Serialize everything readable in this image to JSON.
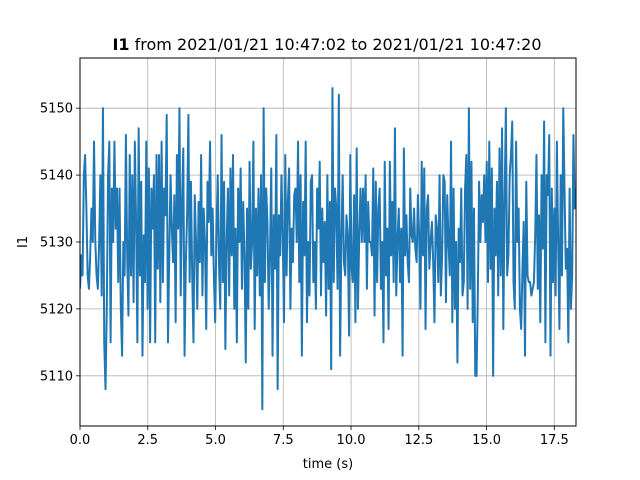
{
  "title": {
    "bold": "I1",
    "rest": " from 2021/01/21 10:47:02 to 2021/01/21 10:47:20"
  },
  "chart_data": {
    "type": "line",
    "title": "I1 from 2021/01/21 10:47:02 to 2021/01/21 10:47:20",
    "xlabel": "time (s)",
    "ylabel": "I1",
    "xlim": [
      0.0,
      18.3
    ],
    "ylim": [
      5102.5,
      5157.5
    ],
    "xticks": [
      0.0,
      2.5,
      5.0,
      7.5,
      10.0,
      12.5,
      15.0,
      17.5
    ],
    "xtick_labels": [
      "0.0",
      "2.5",
      "5.0",
      "7.5",
      "10.0",
      "12.5",
      "15.0",
      "17.5"
    ],
    "yticks": [
      5110,
      5120,
      5130,
      5140,
      5150
    ],
    "ytick_labels": [
      "5110",
      "5120",
      "5130",
      "5140",
      "5150"
    ],
    "grid": true,
    "color": "#1f77b4",
    "series": [
      {
        "values": [
          5123,
          5128,
          5125,
          5140,
          5143,
          5135,
          5125,
          5123,
          5128,
          5135,
          5130,
          5145,
          5130,
          5125,
          5123,
          5130,
          5140,
          5122,
          5150,
          5115,
          5108,
          5120,
          5140,
          5145,
          5115,
          5138,
          5130,
          5145,
          5132,
          5138,
          5124,
          5138,
          5120,
          5113,
          5130,
          5125,
          5146,
          5128,
          5119,
          5143,
          5125,
          5140,
          5121,
          5145,
          5133,
          5115,
          5147,
          5125,
          5139,
          5113,
          5131,
          5124,
          5145,
          5120,
          5141,
          5115,
          5138,
          5132,
          5140,
          5115,
          5143,
          5126,
          5143,
          5121,
          5145,
          5124,
          5138,
          5134,
          5149,
          5115,
          5128,
          5140,
          5132,
          5127,
          5137,
          5118,
          5143,
          5132,
          5150,
          5122,
          5136,
          5144,
          5113,
          5127,
          5134,
          5149,
          5124,
          5139,
          5125,
          5115,
          5137,
          5130,
          5120,
          5136,
          5127,
          5143,
          5122,
          5135,
          5130,
          5117,
          5139,
          5133,
          5145,
          5128,
          5135,
          5125,
          5118,
          5131,
          5140,
          5127,
          5120,
          5146,
          5124,
          5139,
          5114,
          5130,
          5138,
          5122,
          5141,
          5128,
          5143,
          5120,
          5132,
          5115,
          5138,
          5130,
          5141,
          5123,
          5136,
          5128,
          5112,
          5135,
          5120,
          5142,
          5126,
          5130,
          5145,
          5117,
          5135,
          5125,
          5138,
          5122,
          5140,
          5105,
          5150,
          5124,
          5138,
          5133,
          5120,
          5128,
          5141,
          5113,
          5134,
          5126,
          5146,
          5108,
          5134,
          5128,
          5140,
          5131,
          5118,
          5143,
          5125,
          5136,
          5141,
          5120,
          5132,
          5127,
          5137,
          5138,
          5130,
          5145,
          5124,
          5140,
          5113,
          5136,
          5128,
          5145,
          5118,
          5130,
          5122,
          5139,
          5140,
          5124,
          5130,
          5120,
          5138,
          5132,
          5142,
          5122,
          5135,
          5127,
          5133,
          5119,
          5140,
          5123,
          5136,
          5111,
          5153,
          5124,
          5138,
          5135,
          5123,
          5152,
          5113,
          5130,
          5140,
          5127,
          5125,
          5134,
          5131,
          5116,
          5143,
          5126,
          5124,
          5137,
          5118,
          5144,
          5120,
          5131,
          5138,
          5130,
          5138,
          5130,
          5140,
          5123,
          5136,
          5130,
          5130,
          5128,
          5141,
          5119,
          5139,
          5124,
          5135,
          5138,
          5123,
          5130,
          5115,
          5142,
          5125,
          5132,
          5117,
          5142,
          5128,
          5136,
          5124,
          5147,
          5122,
          5130,
          5135,
          5124,
          5132,
          5113,
          5144,
          5128,
          5134,
          5127,
          5124,
          5138,
          5131,
          5130,
          5135,
          5129,
          5127,
          5137,
          5131,
          5120,
          5142,
          5128,
          5141,
          5117,
          5135,
          5137,
          5126,
          5130,
          5133,
          5127,
          5118,
          5134,
          5132,
          5124,
          5140,
          5122,
          5128,
          5140,
          5139,
          5121,
          5137,
          5130,
          5125,
          5145,
          5118,
          5138,
          5120,
          5130,
          5112,
          5132,
          5127,
          5138,
          5122,
          5124,
          5138,
          5143,
          5120,
          5150,
          5123,
          5142,
          5118,
          5135,
          5110,
          5110,
          5122,
          5139,
          5130,
          5137,
          5133,
          5140,
          5130,
          5142,
          5124,
          5145,
          5126,
          5141,
          5110,
          5135,
          5128,
          5139,
          5122,
          5144,
          5125,
          5147,
          5117,
          5136,
          5150,
          5125,
          5128,
          5140,
          5143,
          5148,
          5124,
          5120,
          5145,
          5130,
          5135,
          5120,
          5117,
          5126,
          5133,
          5113,
          5139,
          5125,
          5124,
          5124,
          5122,
          5123,
          5124,
          5131,
          5143,
          5123,
          5134,
          5118,
          5140,
          5129,
          5148,
          5115,
          5140,
          5137,
          5146,
          5113,
          5138,
          5124,
          5135,
          5122,
          5145,
          5130,
          5117,
          5140,
          5125,
          5150,
          5138,
          5126,
          5129,
          5115,
          5138,
          5120,
          5125,
          5146,
          5135,
          5138
        ]
      }
    ]
  }
}
